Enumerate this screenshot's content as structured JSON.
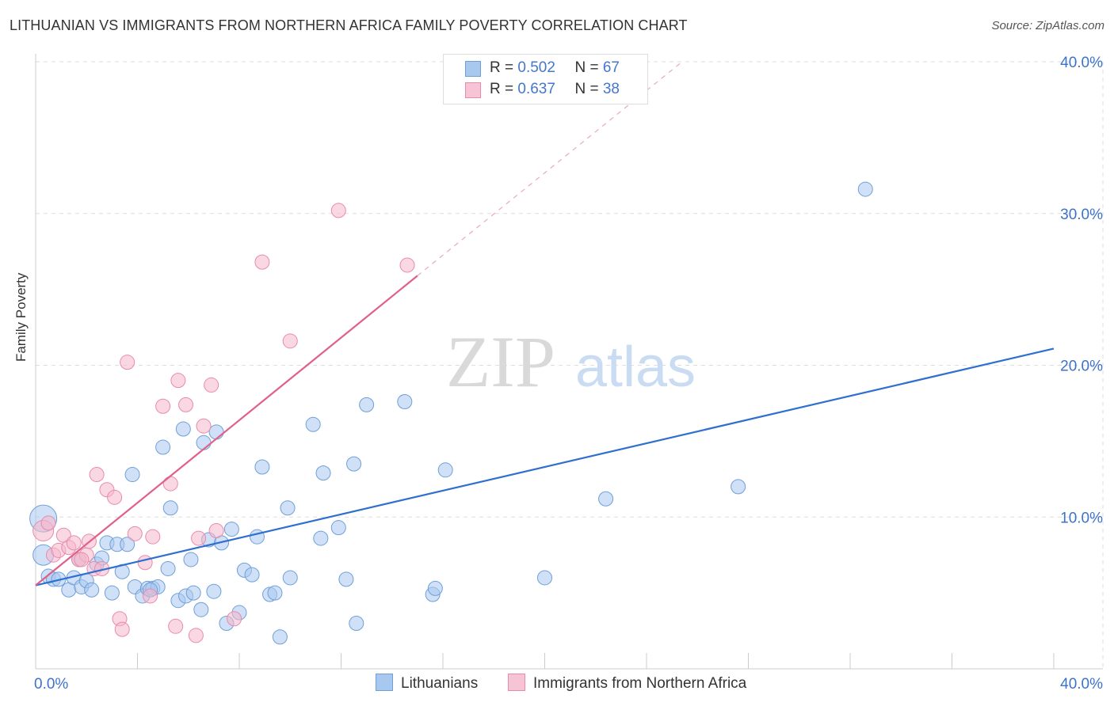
{
  "title": "LITHUANIAN VS IMMIGRANTS FROM NORTHERN AFRICA FAMILY POVERTY CORRELATION CHART",
  "source": "Source: ZipAtlas.com",
  "watermark": {
    "zip": "ZIP",
    "atlas": "atlas"
  },
  "legend_top": [
    {
      "r_label": "R = ",
      "r_value": "0.502",
      "n_label": "N = ",
      "n_value": "67"
    },
    {
      "r_label": "R = ",
      "r_value": "0.637",
      "n_label": "N = ",
      "n_value": "38"
    }
  ],
  "legend_bottom": [
    "Lithuanians",
    "Immigrants from Northern Africa"
  ],
  "colors": {
    "blue_fill": "#a9c8f0",
    "blue_stroke": "#6f9fd8",
    "blue_line": "#2f6fd0",
    "pink_fill": "#f6b8cc",
    "pink_stroke": "#e98aa9",
    "pink_line": "#e0608a",
    "tick_text": "#3d72c9",
    "grid": "#dddddd"
  },
  "chart_data": {
    "type": "scatter",
    "title": "LITHUANIAN VS IMMIGRANTS FROM NORTHERN AFRICA FAMILY POVERTY CORRELATION CHART",
    "xlabel": "",
    "ylabel": "Family Poverty",
    "xlim": [
      0,
      40
    ],
    "ylim": [
      0,
      40
    ],
    "x_tick_labels": [
      "0.0%",
      "40.0%"
    ],
    "y_ticks": [
      10,
      20,
      30,
      40
    ],
    "y_tick_labels": [
      "10.0%",
      "20.0%",
      "30.0%",
      "40.0%"
    ],
    "series": [
      {
        "name": "Lithuanians",
        "r": 0.502,
        "n": 67,
        "trend": {
          "x": [
            0,
            40
          ],
          "y": [
            5.5,
            21.1
          ]
        },
        "points": [
          [
            0.3,
            9.9,
            16
          ],
          [
            0.3,
            7.5,
            12
          ],
          [
            0.5,
            6.1,
            8
          ],
          [
            0.7,
            5.9,
            8
          ],
          [
            0.9,
            5.9,
            8
          ],
          [
            1.3,
            5.2,
            8
          ],
          [
            1.5,
            6.0,
            8
          ],
          [
            1.7,
            7.2,
            8
          ],
          [
            1.8,
            5.4,
            8
          ],
          [
            2.0,
            5.8,
            8
          ],
          [
            2.2,
            5.2,
            8
          ],
          [
            2.4,
            6.9,
            8
          ],
          [
            2.6,
            7.3,
            8
          ],
          [
            2.8,
            8.3,
            8
          ],
          [
            3.0,
            5.0,
            8
          ],
          [
            3.2,
            8.2,
            8
          ],
          [
            3.4,
            6.4,
            8
          ],
          [
            3.6,
            8.2,
            8
          ],
          [
            3.8,
            12.8,
            8
          ],
          [
            3.9,
            5.4,
            8
          ],
          [
            4.2,
            4.8,
            8
          ],
          [
            4.4,
            5.3,
            8
          ],
          [
            4.6,
            5.3,
            8
          ],
          [
            4.8,
            5.4,
            8
          ],
          [
            5.0,
            14.6,
            8
          ],
          [
            5.2,
            6.6,
            8
          ],
          [
            5.3,
            10.6,
            8
          ],
          [
            5.6,
            4.5,
            8
          ],
          [
            5.8,
            15.8,
            8
          ],
          [
            5.9,
            4.8,
            8
          ],
          [
            6.1,
            7.2,
            8
          ],
          [
            6.2,
            5.0,
            8
          ],
          [
            6.5,
            3.9,
            8
          ],
          [
            6.6,
            14.9,
            8
          ],
          [
            6.8,
            8.5,
            8
          ],
          [
            7.0,
            5.1,
            8
          ],
          [
            7.1,
            15.6,
            8
          ],
          [
            7.3,
            8.3,
            8
          ],
          [
            7.5,
            3.0,
            8
          ],
          [
            7.7,
            9.2,
            8
          ],
          [
            8.0,
            3.7,
            8
          ],
          [
            8.2,
            6.5,
            8
          ],
          [
            8.5,
            6.2,
            8
          ],
          [
            8.7,
            8.7,
            8
          ],
          [
            8.9,
            13.3,
            8
          ],
          [
            9.2,
            4.9,
            8
          ],
          [
            9.4,
            5.0,
            8
          ],
          [
            9.6,
            2.1,
            8
          ],
          [
            9.9,
            10.6,
            8
          ],
          [
            10.0,
            6.0,
            8
          ],
          [
            10.9,
            16.1,
            8
          ],
          [
            11.3,
            12.9,
            8
          ],
          [
            11.9,
            9.3,
            8
          ],
          [
            12.2,
            5.9,
            8
          ],
          [
            12.5,
            13.5,
            8
          ],
          [
            12.6,
            3.0,
            8
          ],
          [
            13.0,
            17.4,
            8
          ],
          [
            11.2,
            8.6,
            8
          ],
          [
            14.5,
            17.6,
            8
          ],
          [
            15.6,
            4.9,
            8
          ],
          [
            15.7,
            5.3,
            8
          ],
          [
            16.1,
            13.1,
            8
          ],
          [
            20.0,
            6.0,
            8
          ],
          [
            22.4,
            11.2,
            8
          ],
          [
            27.6,
            12.0,
            8
          ],
          [
            32.6,
            31.6,
            8
          ],
          [
            4.5,
            5.2,
            8
          ]
        ]
      },
      {
        "name": "Immigrants from Northern Africa",
        "r": 0.637,
        "n": 38,
        "trend": {
          "x": [
            0,
            15.0
          ],
          "y": [
            5.5,
            25.9
          ],
          "dash_to": {
            "x": 25.4,
            "y": 40.0
          }
        },
        "points": [
          [
            0.3,
            9.1,
            12
          ],
          [
            0.5,
            9.6,
            8
          ],
          [
            0.7,
            7.5,
            8
          ],
          [
            0.9,
            7.8,
            8
          ],
          [
            1.1,
            8.8,
            8
          ],
          [
            1.3,
            8.0,
            8
          ],
          [
            1.5,
            8.3,
            8
          ],
          [
            1.7,
            7.2,
            8
          ],
          [
            2.0,
            7.5,
            8
          ],
          [
            2.1,
            8.4,
            8
          ],
          [
            2.3,
            6.6,
            8
          ],
          [
            2.4,
            12.8,
            8
          ],
          [
            2.6,
            6.6,
            8
          ],
          [
            2.8,
            11.8,
            8
          ],
          [
            3.1,
            11.3,
            8
          ],
          [
            3.3,
            3.3,
            8
          ],
          [
            3.4,
            2.6,
            8
          ],
          [
            3.6,
            20.2,
            8
          ],
          [
            3.9,
            8.9,
            8
          ],
          [
            4.3,
            7.0,
            8
          ],
          [
            4.5,
            4.8,
            8
          ],
          [
            4.6,
            8.7,
            8
          ],
          [
            5.0,
            17.3,
            8
          ],
          [
            5.3,
            12.2,
            8
          ],
          [
            5.5,
            2.8,
            8
          ],
          [
            5.6,
            19.0,
            8
          ],
          [
            5.9,
            17.4,
            8
          ],
          [
            6.3,
            2.2,
            8
          ],
          [
            6.4,
            8.6,
            8
          ],
          [
            6.6,
            16.0,
            8
          ],
          [
            6.9,
            18.7,
            8
          ],
          [
            7.1,
            9.1,
            8
          ],
          [
            7.8,
            3.3,
            8
          ],
          [
            8.9,
            26.8,
            8
          ],
          [
            10.0,
            21.6,
            8
          ],
          [
            11.9,
            30.2,
            8
          ],
          [
            14.6,
            26.6,
            8
          ],
          [
            1.8,
            7.2,
            8
          ]
        ]
      }
    ]
  }
}
